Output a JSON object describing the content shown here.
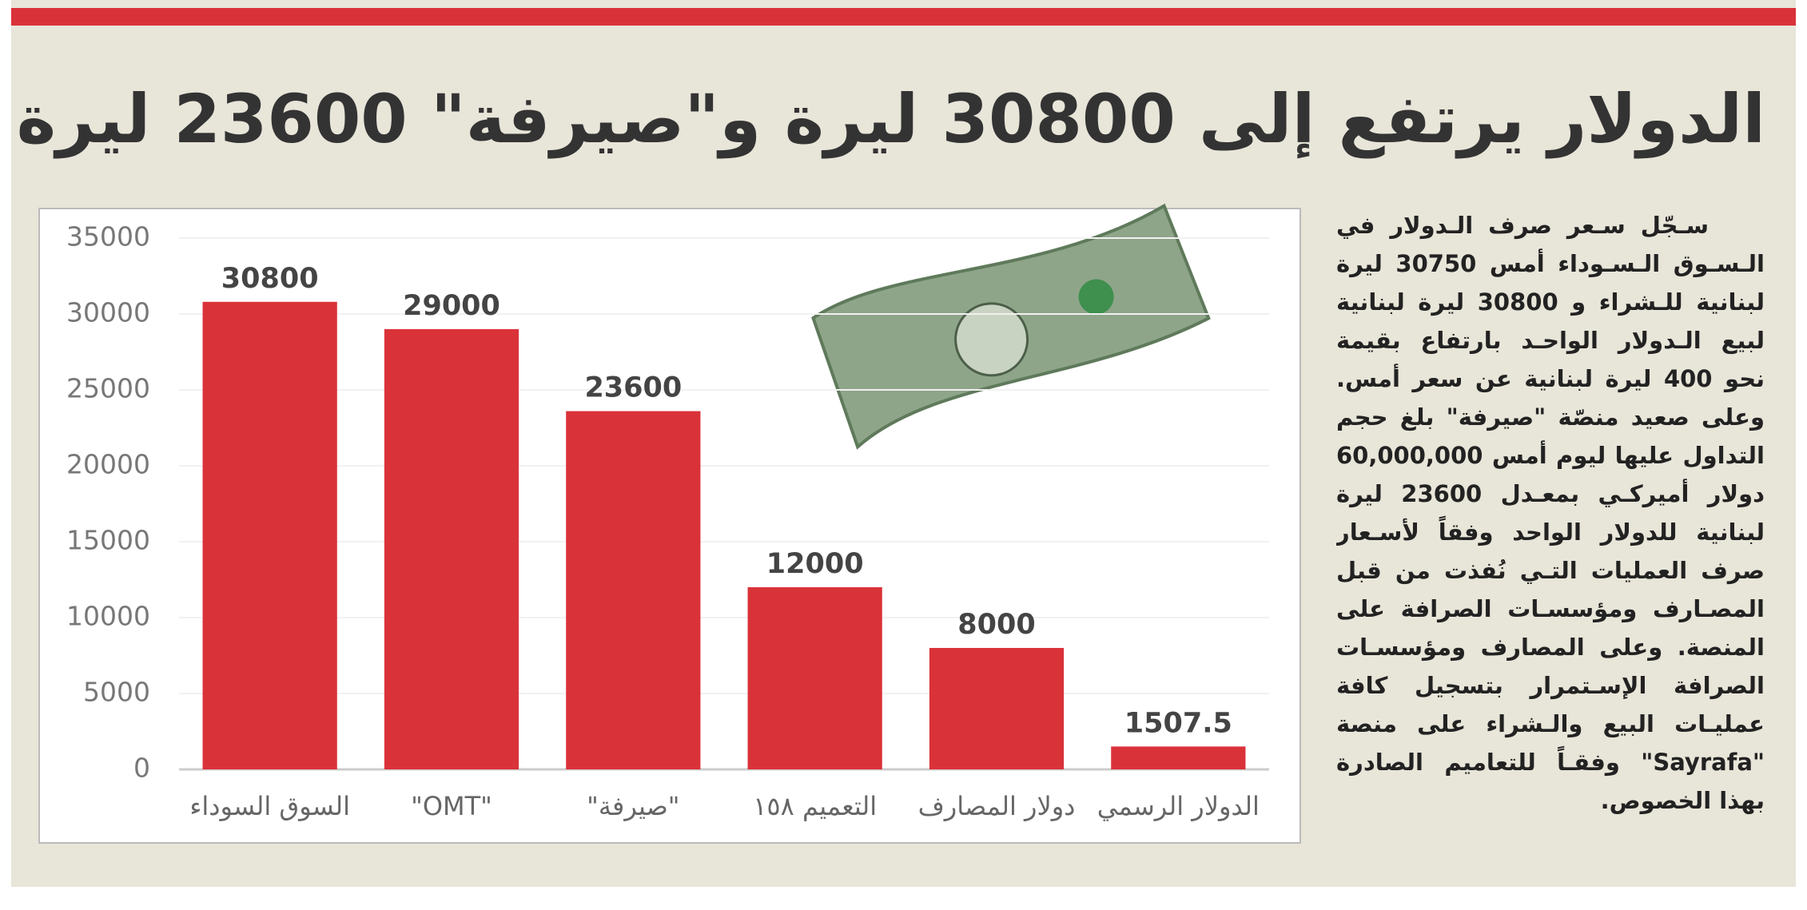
{
  "chart_data": {
    "type": "bar",
    "title": "الدولار يرتفع إلى 30800 ليرة و\"صيرفة\" 23600 ليرة",
    "categories": [
      "السوق السوداء",
      "\"OMT\"",
      "\"صيرفة\"",
      "التعميم ١٥٨",
      "دولار المصارف",
      "الدولار الرسمي"
    ],
    "values": [
      30800,
      29000,
      23600,
      12000,
      8000,
      1507.5
    ],
    "color": "#da3239",
    "ylim": [
      0,
      35000
    ],
    "yticks": [
      0,
      5000,
      10000,
      15000,
      20000,
      25000,
      30000,
      35000
    ],
    "grid": true
  },
  "article": {
    "lines": [
      "سـجّل سـعر صرف الـدولار في",
      "الـسـوق الـسـوداء أمس 30750 ليرة",
      "لبنانية للـشراء و 30800 ليرة لبنانية",
      "لبيع الـدولار الواحـد بارتفاع بقيمة",
      "نحو 400 ليرة لبنانية عن سعر أمس.",
      "وعلى صعيد منصّة \"صيرفة\" بلغ حجم",
      "التداول عليها ليوم أمس 60,000,000",
      "دولار أميركـي بمعـدل 23600 ليرة",
      "لبنانية للدولار الواحد وفقاً لأسـعار",
      "صرف العمليات التـي نُفذت من قبل",
      "المصـارف ومؤسسـات الصرافة على",
      "المنصة. وعلى المصارف ومؤسسـات",
      "الصرافة الإسـتمرار بتسجيل كافة",
      "عمليـات البيع والـشراء على منصة",
      "\"Sayrafa\" وفقـاً للتعاميم الصادرة",
      "بهذا الخصوص."
    ]
  }
}
